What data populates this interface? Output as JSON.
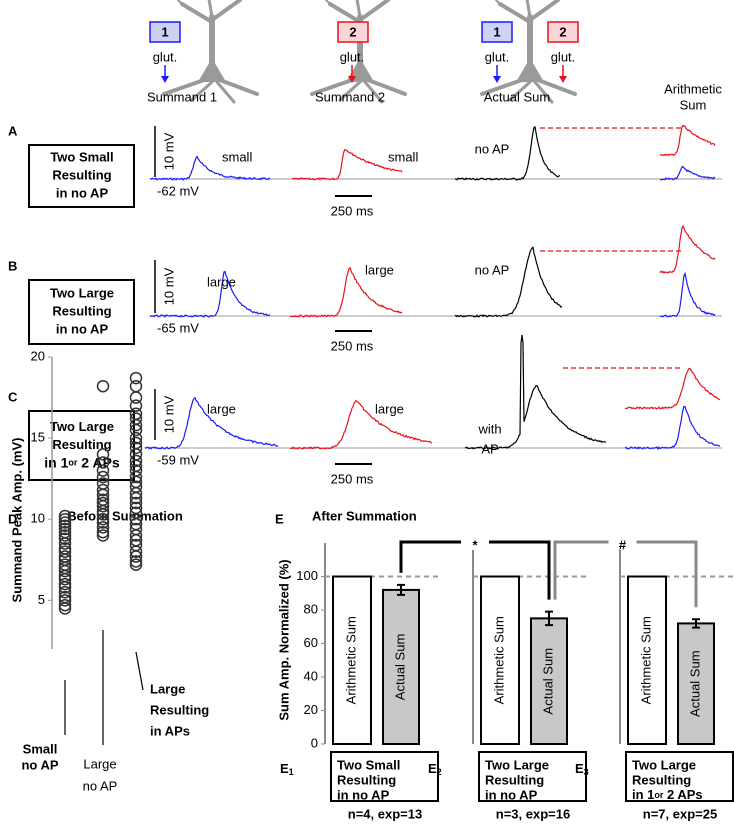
{
  "figure": {
    "header": [
      {
        "boxes": [
          "1"
        ],
        "glut": [
          "glut."
        ],
        "caption": "Summand 1"
      },
      {
        "boxes": [
          "2"
        ],
        "glut": [
          "glut."
        ],
        "caption": "Summand 2"
      },
      {
        "boxes": [
          "1",
          "2"
        ],
        "glut": [
          "glut.",
          "glut."
        ],
        "caption": "Actual Sum"
      },
      {
        "caption_lines": [
          "Arithmetic",
          "Sum"
        ]
      }
    ],
    "rows": [
      {
        "letter": "A",
        "label": [
          "Two Small",
          "Resulting",
          "in no AP"
        ],
        "scale": "10 mV",
        "baseline": "-62 mV",
        "time_scale": "250 ms",
        "annotations": [
          "small",
          "small",
          [
            "no AP"
          ]
        ]
      },
      {
        "letter": "B",
        "label": [
          "Two Large",
          "Resulting",
          "in no AP"
        ],
        "scale": "10 mV",
        "baseline": "-65 mV",
        "time_scale": "250 ms",
        "annotations": [
          "large",
          "large",
          [
            "no AP"
          ]
        ]
      },
      {
        "letter": "C",
        "label": [
          "Two Large",
          "Resulting",
          [
            "in 1",
            "or",
            " 2 APs"
          ]
        ],
        "scale": "10 mV",
        "baseline": "-59 mV",
        "time_scale": "250 ms",
        "annotations": [
          "large",
          "large",
          [
            "with",
            "AP"
          ]
        ]
      }
    ]
  },
  "chart_data": [
    {
      "type": "strip",
      "panel": "D",
      "title": "Before Summation",
      "y_label": "Summand Peak Amp. (mV)",
      "ylim": [
        2,
        20
      ],
      "yticks": [
        5,
        10,
        15,
        20
      ],
      "marker_color": "#333333",
      "categories": [
        [
          "Small",
          "no AP"
        ],
        [
          "Large",
          "no AP"
        ],
        [
          "Large",
          "Resulting",
          "in APs"
        ]
      ],
      "values": [
        [
          10.2,
          10,
          9.8,
          9.6,
          9.4,
          9.2,
          9,
          8.8,
          8.5,
          8.2,
          8,
          7.7,
          7.5,
          7.2,
          7,
          6.8,
          6.5,
          6.3,
          6,
          5.8,
          5.5,
          5.2,
          5,
          4.7,
          4.5
        ],
        [
          18.2,
          14,
          13.5,
          13,
          12.6,
          12.2,
          11.8,
          11.5,
          11.2,
          11,
          10.8,
          10.5,
          10.3,
          10,
          9.8,
          9.5,
          9.2,
          9
        ],
        [
          18.7,
          18.2,
          17.5,
          17,
          16.5,
          16.2,
          15.8,
          15.5,
          15,
          14.7,
          14.4,
          14,
          13.6,
          13.3,
          13,
          12.6,
          12.3,
          12,
          11.6,
          11.3,
          11,
          10.7,
          10.4,
          10,
          9.7,
          9.4,
          9,
          8.7,
          8.4,
          8,
          7.7,
          7.4,
          7.2
        ]
      ]
    },
    {
      "type": "bar",
      "panel": "E",
      "title": "After Summation",
      "y_label": "Sum Amp. Normalized (%)",
      "ylim": [
        0,
        120
      ],
      "yticks": [
        0,
        20,
        40,
        60,
        80,
        100
      ],
      "reference_line": 100,
      "categories": [
        "Arithmetic Sum",
        "Actual Sum"
      ],
      "colors": [
        "#ffffff",
        "#c8c8c8"
      ],
      "groups": [
        {
          "id": [
            "E",
            "1"
          ],
          "values": [
            100,
            92
          ],
          "errors": [
            null,
            3
          ],
          "label": [
            "Two Small",
            "Resulting",
            "in no AP"
          ],
          "n": "n=4, exp=13"
        },
        {
          "id": [
            "E",
            "2"
          ],
          "values": [
            100,
            75
          ],
          "errors": [
            null,
            4
          ],
          "label": [
            "Two Large",
            "Resulting",
            "in no AP"
          ],
          "n": "n=3, exp=16"
        },
        {
          "id": [
            "E",
            "3"
          ],
          "values": [
            100,
            72
          ],
          "errors": [
            null,
            2.5
          ],
          "label": [
            "Two Large",
            "Resulting",
            [
              "in 1",
              "or",
              " 2 APs"
            ]
          ],
          "n": "n=7, exp=25"
        }
      ],
      "significance": [
        {
          "label": "*",
          "color": "#000000"
        },
        {
          "label": "#",
          "color": "#888888"
        }
      ]
    }
  ]
}
